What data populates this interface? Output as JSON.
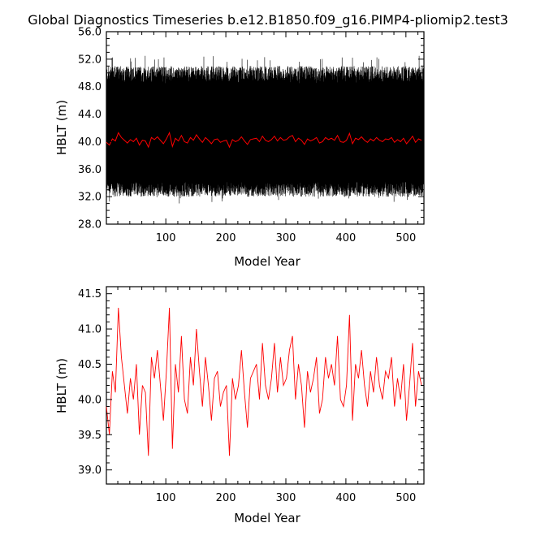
{
  "title": "Global Diagnostics Timeseries b.e12.B1850.f09_g16.PIMP4-pliomip2.test3",
  "chart_data": [
    {
      "type": "line",
      "xlabel": "Model Year",
      "ylabel": "HBLT (m)",
      "xlim": [
        1,
        530
      ],
      "ylim": [
        28.0,
        56.0
      ],
      "xticks": [
        "100",
        "200",
        "300",
        "400",
        "500"
      ],
      "yticks": [
        "28.0",
        "32.0",
        "36.0",
        "40.0",
        "44.0",
        "48.0",
        "52.0",
        "56.0"
      ],
      "grid": false,
      "series": [
        {
          "color": "#000000",
          "resolution": "monthly",
          "description_values": {
            "x_range": [
              1,
              530
            ],
            "typical_min": 33.0,
            "typical_max": 50.0,
            "extreme_min": 31.0,
            "extreme_max": 52.5
          }
        },
        {
          "color": "#ff0000",
          "resolution": "annual",
          "values_ref": "chart_data.1.series.0.values"
        }
      ]
    },
    {
      "type": "line",
      "xlabel": "Model Year",
      "ylabel": "HBLT (m)",
      "xlim": [
        1,
        530
      ],
      "ylim": [
        38.8,
        41.6
      ],
      "xticks": [
        "100",
        "200",
        "300",
        "400",
        "500"
      ],
      "yticks": [
        "39.0",
        "39.5",
        "40.0",
        "40.5",
        "41.0",
        "41.5"
      ],
      "grid": false,
      "series": [
        {
          "color": "#ff0000",
          "x_start": 1,
          "x_step": 5,
          "values": [
            39.9,
            39.5,
            40.4,
            40.1,
            41.3,
            40.6,
            40.2,
            39.8,
            40.3,
            40.0,
            40.5,
            39.5,
            40.2,
            40.1,
            39.2,
            40.6,
            40.3,
            40.7,
            40.2,
            39.7,
            40.4,
            41.3,
            39.3,
            40.5,
            40.1,
            40.9,
            40.0,
            39.8,
            40.6,
            40.2,
            41.0,
            40.4,
            39.9,
            40.6,
            40.2,
            39.7,
            40.3,
            40.4,
            39.9,
            40.1,
            40.2,
            39.2,
            40.3,
            40.0,
            40.2,
            40.7,
            40.1,
            39.6,
            40.3,
            40.4,
            40.5,
            40.0,
            40.8,
            40.2,
            40.0,
            40.3,
            40.8,
            40.1,
            40.6,
            40.2,
            40.3,
            40.7,
            40.9,
            40.0,
            40.5,
            40.2,
            39.6,
            40.4,
            40.1,
            40.3,
            40.6,
            39.8,
            40.0,
            40.6,
            40.3,
            40.5,
            40.2,
            40.9,
            40.0,
            39.9,
            40.2,
            41.2,
            39.7,
            40.5,
            40.3,
            40.7,
            40.2,
            39.9,
            40.4,
            40.1,
            40.6,
            40.2,
            40.0,
            40.4,
            40.3,
            40.6,
            39.9,
            40.3,
            40.0,
            40.5,
            39.7,
            40.2,
            40.8,
            39.9,
            40.4,
            40.2
          ]
        }
      ]
    }
  ]
}
